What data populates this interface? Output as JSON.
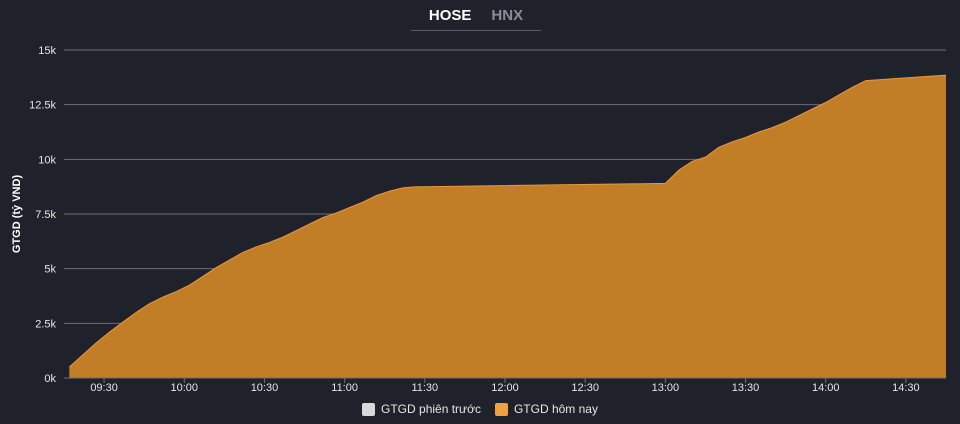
{
  "tabs": [
    {
      "label": "HOSE",
      "active": true
    },
    {
      "label": "HNX",
      "active": false
    }
  ],
  "colors": {
    "background": "#1f212b",
    "area_fill": "#c27d27",
    "area_line": "#e8993a",
    "previous_swatch": "#d9d9d9",
    "today_swatch": "#f0a03c",
    "grid": "#6b6e78"
  },
  "chart_data": {
    "type": "area",
    "title": "",
    "xlabel": "",
    "ylabel": "GTGD (tỷ VND)",
    "ylim": [
      0,
      15000
    ],
    "y_ticks": [
      0,
      2500,
      5000,
      7500,
      10000,
      12500,
      15000
    ],
    "y_tick_labels": [
      "0k",
      "2.5k",
      "5k",
      "7.5k",
      "10k",
      "12.5k",
      "15k"
    ],
    "xlim": [
      "09:15",
      "14:45"
    ],
    "x_ticks": [
      "09:30",
      "10:00",
      "10:30",
      "11:00",
      "11:30",
      "12:00",
      "12:30",
      "13:00",
      "13:30",
      "14:00",
      "14:30"
    ],
    "grid": true,
    "legend_position": "bottom",
    "legend": [
      "GTGD phiên trước",
      "GTGD hôm nay"
    ],
    "series": [
      {
        "name": "GTGD hôm nay",
        "x": [
          "09:17",
          "09:22",
          "09:27",
          "09:32",
          "09:37",
          "09:42",
          "09:47",
          "09:52",
          "09:57",
          "10:02",
          "10:07",
          "10:12",
          "10:17",
          "10:22",
          "10:27",
          "10:32",
          "10:37",
          "10:42",
          "10:47",
          "10:52",
          "10:57",
          "11:02",
          "11:07",
          "11:12",
          "11:17",
          "11:22",
          "11:27",
          "11:30",
          "13:00",
          "13:05",
          "13:10",
          "13:15",
          "13:20",
          "13:25",
          "13:30",
          "13:35",
          "13:40",
          "13:45",
          "13:50",
          "13:55",
          "14:00",
          "14:05",
          "14:10",
          "14:15",
          "14:45"
        ],
        "values": [
          500,
          1050,
          1600,
          2100,
          2550,
          3000,
          3400,
          3700,
          3950,
          4250,
          4650,
          5050,
          5400,
          5750,
          6000,
          6200,
          6450,
          6750,
          7050,
          7350,
          7550,
          7800,
          8050,
          8350,
          8550,
          8700,
          8750,
          8750,
          8900,
          9500,
          9900,
          10100,
          10550,
          10800,
          11000,
          11250,
          11450,
          11700,
          12000,
          12300,
          12600,
          12950,
          13300,
          13600,
          13850
        ]
      }
    ]
  }
}
